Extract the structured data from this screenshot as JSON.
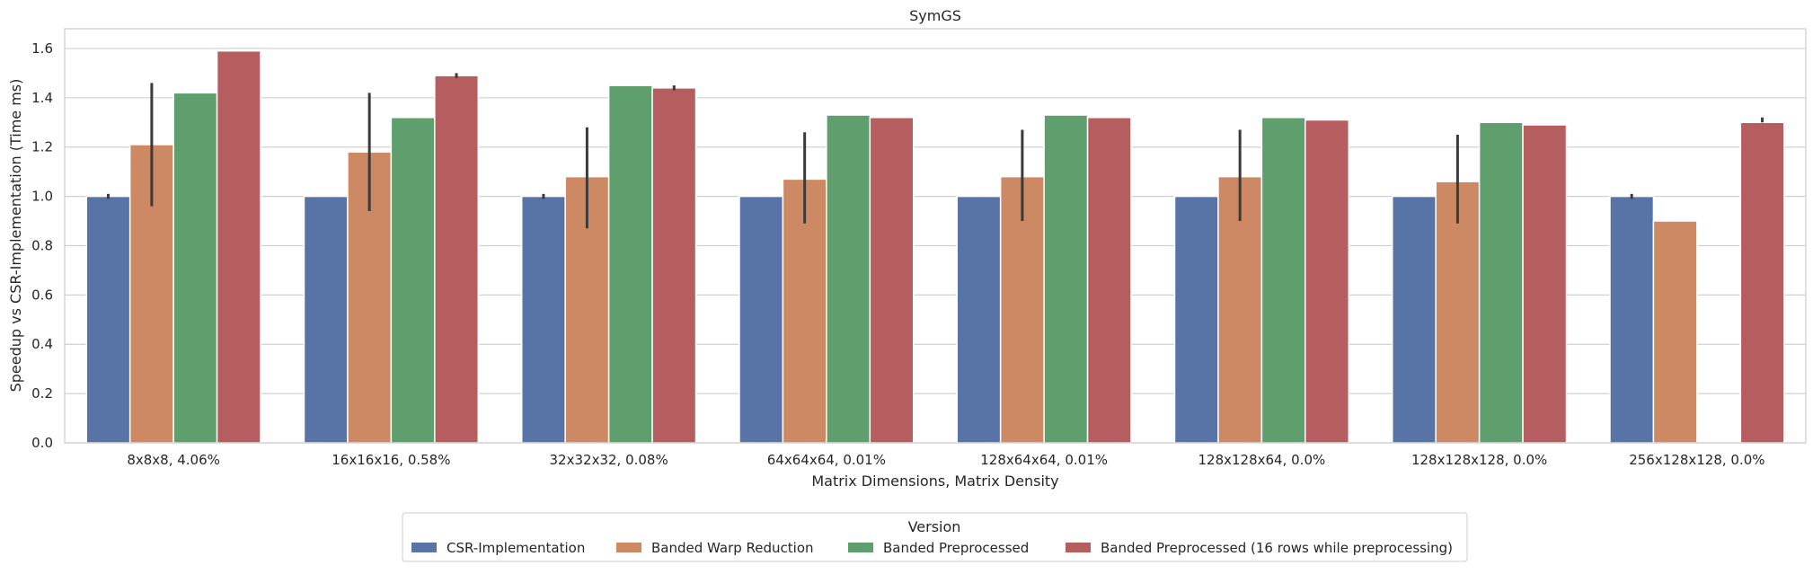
{
  "chart_data": {
    "type": "bar",
    "title": "SymGS",
    "xlabel": "Matrix Dimensions, Matrix Density",
    "ylabel": "Speedup vs CSR-Implementation (Time ms)",
    "ylim": [
      0,
      1.68
    ],
    "yticks": [
      "0.0",
      "0.2",
      "0.4",
      "0.6",
      "0.8",
      "1.0",
      "1.2",
      "1.4",
      "1.6"
    ],
    "grid": "horizontal",
    "legend_placement": "bottom-center",
    "legend_title": "Version",
    "categories": [
      "8x8x8, 4.06%",
      "16x16x16, 0.58%",
      "32x32x32, 0.08%",
      "64x64x64, 0.01%",
      "128x64x64, 0.01%",
      "128x128x64, 0.0%",
      "128x128x128, 0.0%",
      "256x128x128, 0.0%"
    ],
    "series": [
      {
        "name": "CSR-Implementation",
        "color": "#5874a6",
        "values": [
          1.0,
          1.0,
          1.0,
          1.0,
          1.0,
          1.0,
          1.0,
          1.0
        ],
        "error_low": [
          0.99,
          null,
          0.99,
          null,
          null,
          null,
          null,
          0.99
        ],
        "error_high": [
          1.01,
          null,
          1.01,
          null,
          null,
          null,
          null,
          1.01
        ]
      },
      {
        "name": "Banded Warp Reduction",
        "color": "#cd8963",
        "values": [
          1.21,
          1.18,
          1.08,
          1.07,
          1.08,
          1.08,
          1.06,
          0.9
        ],
        "error_low": [
          0.96,
          0.94,
          0.87,
          0.89,
          0.9,
          0.9,
          0.89,
          null
        ],
        "error_high": [
          1.46,
          1.42,
          1.28,
          1.26,
          1.27,
          1.27,
          1.25,
          null
        ]
      },
      {
        "name": "Banded Preprocessed",
        "color": "#5f9f6e",
        "values": [
          1.42,
          1.32,
          1.45,
          1.33,
          1.33,
          1.32,
          1.3,
          null
        ],
        "error_low": [
          null,
          null,
          null,
          null,
          null,
          null,
          null,
          null
        ],
        "error_high": [
          null,
          null,
          null,
          null,
          null,
          null,
          null,
          null
        ]
      },
      {
        "name": "Banded Preprocessed (16 rows while preprocessing)",
        "color": "#b65d60",
        "values": [
          1.59,
          1.49,
          1.44,
          1.32,
          1.32,
          1.31,
          1.29,
          1.3
        ],
        "error_low": [
          null,
          1.48,
          1.43,
          null,
          null,
          null,
          null,
          1.3
        ],
        "error_high": [
          null,
          1.5,
          1.45,
          null,
          null,
          null,
          null,
          1.32
        ]
      }
    ]
  }
}
